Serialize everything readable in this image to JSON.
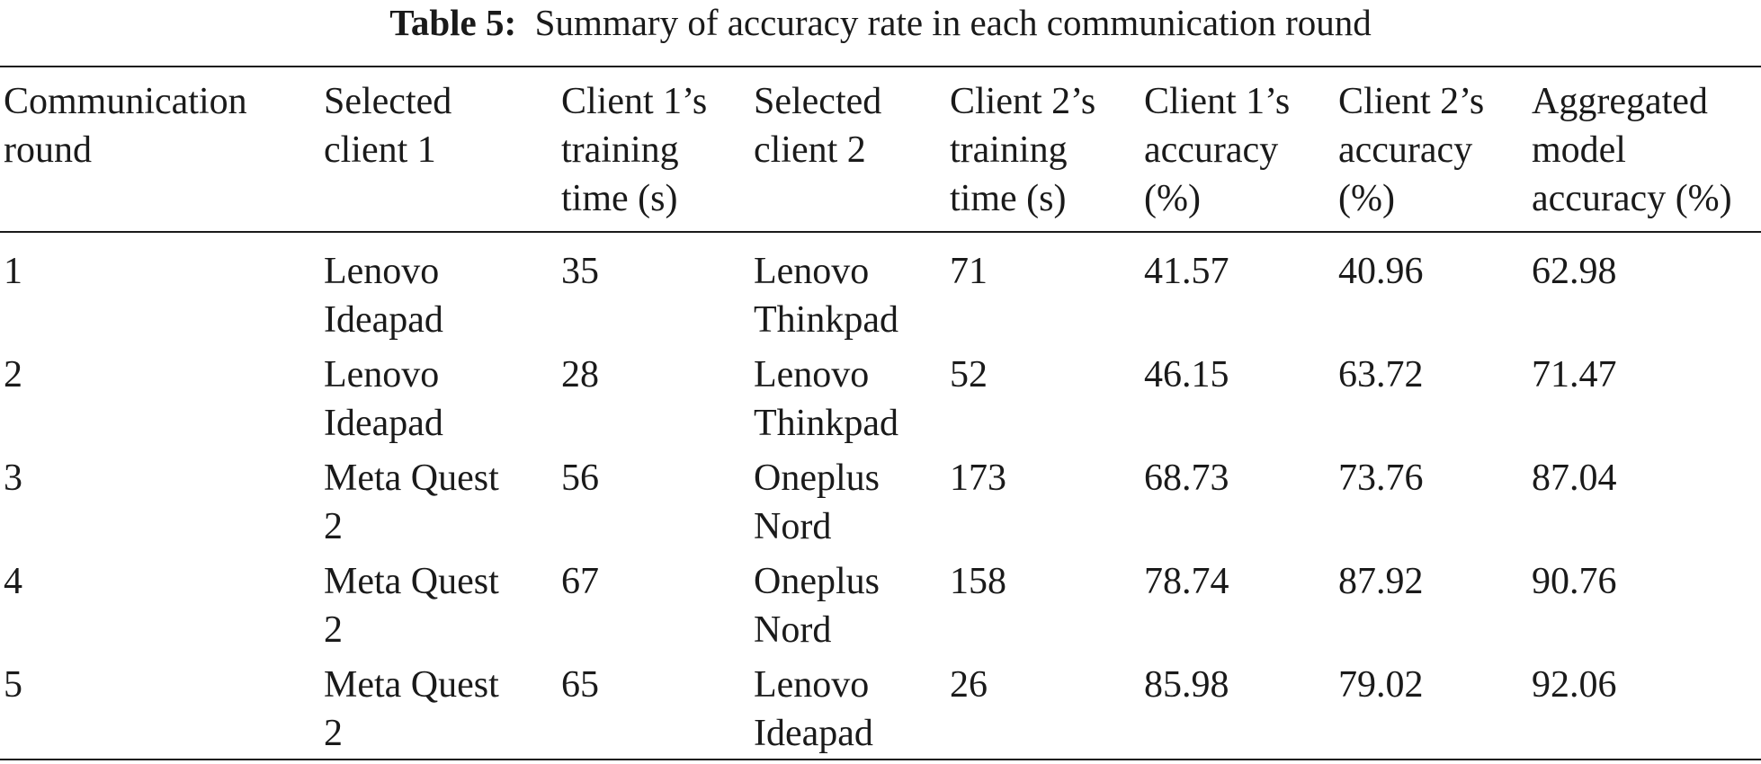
{
  "caption": {
    "label": "Table 5:",
    "text": "Summary of accuracy rate in each communication round"
  },
  "headers": [
    [
      "Communication",
      "round"
    ],
    [
      "Selected",
      "client 1"
    ],
    [
      "Client 1’s",
      "training",
      "time (s)"
    ],
    [
      "Selected",
      "client 2"
    ],
    [
      "Client 2’s",
      "training",
      "time (s)"
    ],
    [
      "Client 1’s",
      "accuracy",
      "(%)"
    ],
    [
      "Client 2’s",
      "accuracy",
      "(%)"
    ],
    [
      "Aggregated",
      "model",
      "accuracy (%)"
    ]
  ],
  "rows": [
    [
      [
        "1"
      ],
      [
        "Lenovo",
        "Ideapad"
      ],
      [
        "35"
      ],
      [
        "Lenovo",
        "Thinkpad"
      ],
      [
        "71"
      ],
      [
        "41.57"
      ],
      [
        "40.96"
      ],
      [
        "62.98"
      ]
    ],
    [
      [
        "2"
      ],
      [
        "Lenovo",
        "Ideapad"
      ],
      [
        "28"
      ],
      [
        "Lenovo",
        "Thinkpad"
      ],
      [
        "52"
      ],
      [
        "46.15"
      ],
      [
        "63.72"
      ],
      [
        "71.47"
      ]
    ],
    [
      [
        "3"
      ],
      [
        "Meta Quest",
        "2"
      ],
      [
        "56"
      ],
      [
        "Oneplus",
        "Nord"
      ],
      [
        "173"
      ],
      [
        "68.73"
      ],
      [
        "73.76"
      ],
      [
        "87.04"
      ]
    ],
    [
      [
        "4"
      ],
      [
        "Meta Quest",
        "2"
      ],
      [
        "67"
      ],
      [
        "Oneplus",
        "Nord"
      ],
      [
        "158"
      ],
      [
        "78.74"
      ],
      [
        "87.92"
      ],
      [
        "90.76"
      ]
    ],
    [
      [
        "5"
      ],
      [
        "Meta Quest",
        "2"
      ],
      [
        "65"
      ],
      [
        "Lenovo",
        "Ideapad"
      ],
      [
        "26"
      ],
      [
        "85.98"
      ],
      [
        "79.02"
      ],
      [
        "92.06"
      ]
    ]
  ]
}
